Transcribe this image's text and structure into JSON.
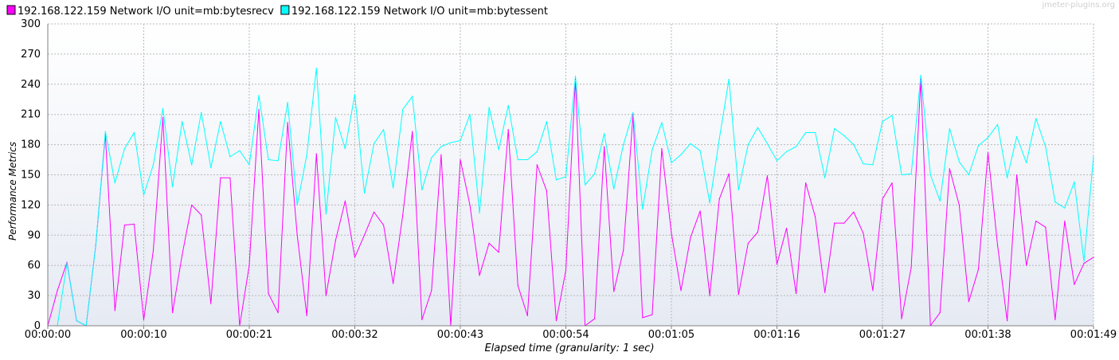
{
  "watermark": "jmeter-plugins.org",
  "chart_data": {
    "type": "line",
    "title": "",
    "xlabel": "Elapsed time (granularity: 1 sec)",
    "ylabel": "Performance Metrics",
    "ylim": [
      0,
      300
    ],
    "yticks": [
      0,
      30,
      60,
      90,
      120,
      150,
      180,
      210,
      240,
      270,
      300
    ],
    "xlim": [
      0,
      109
    ],
    "xticks": [
      {
        "value": 0,
        "label": "00:00:00"
      },
      {
        "value": 10,
        "label": "00:00:10"
      },
      {
        "value": 21,
        "label": "00:00:21"
      },
      {
        "value": 32,
        "label": "00:00:32"
      },
      {
        "value": 43,
        "label": "00:00:43"
      },
      {
        "value": 54,
        "label": "00:00:54"
      },
      {
        "value": 65,
        "label": "00:01:05"
      },
      {
        "value": 76,
        "label": "00:01:16"
      },
      {
        "value": 87,
        "label": "00:01:27"
      },
      {
        "value": 98,
        "label": "00:01:38"
      },
      {
        "value": 109,
        "label": "00:01:49"
      }
    ],
    "grid": true,
    "legend_position": "top-left",
    "series": [
      {
        "name": "192.168.122.159 Network I/O unit=mb:bytesrecv",
        "color": "#ff00ff",
        "values": [
          0,
          35,
          63,
          5,
          0,
          80,
          190,
          15,
          100,
          101,
          6,
          75,
          207,
          13,
          70,
          120,
          110,
          22,
          147,
          147,
          0,
          60,
          215,
          32,
          13,
          202,
          90,
          10,
          171,
          30,
          85,
          124,
          68,
          90,
          113,
          100,
          42,
          110,
          193,
          6,
          35,
          170,
          0,
          165,
          120,
          50,
          82,
          73,
          195,
          40,
          10,
          160,
          134,
          5,
          55,
          245,
          0,
          7,
          178,
          34,
          75,
          210,
          8,
          11,
          176,
          92,
          35,
          88,
          114,
          30,
          126,
          151,
          31,
          82,
          93,
          149,
          61,
          97,
          32,
          142,
          108,
          33,
          102,
          102,
          113,
          92,
          35,
          126,
          142,
          7,
          58,
          245,
          0,
          13,
          156,
          120,
          24,
          56,
          172,
          80,
          5,
          150,
          60,
          104,
          98,
          6,
          104,
          41,
          62,
          68
        ]
      },
      {
        "name": "192.168.122.159 Network I/O unit=mb:bytessent",
        "color": "#00ffff",
        "values": [
          0,
          0,
          62,
          5,
          0,
          80,
          193,
          142,
          176,
          192,
          130,
          160,
          216,
          138,
          203,
          160,
          212,
          157,
          203,
          168,
          174,
          160,
          229,
          165,
          164,
          222,
          120,
          170,
          256,
          111,
          207,
          176,
          230,
          132,
          181,
          195,
          137,
          215,
          228,
          135,
          167,
          178,
          182,
          184,
          210,
          112,
          217,
          175,
          219,
          165,
          165,
          173,
          203,
          145,
          148,
          248,
          140,
          151,
          191,
          136,
          180,
          212,
          116,
          175,
          202,
          162,
          170,
          181,
          174,
          122,
          186,
          245,
          135,
          180,
          197,
          181,
          164,
          173,
          178,
          192,
          192,
          147,
          196,
          189,
          180,
          161,
          160,
          203,
          209,
          150,
          151,
          249,
          150,
          124,
          196,
          163,
          150,
          179,
          187,
          200,
          147,
          188,
          162,
          206,
          178,
          123,
          117,
          143,
          64,
          168
        ]
      }
    ]
  }
}
